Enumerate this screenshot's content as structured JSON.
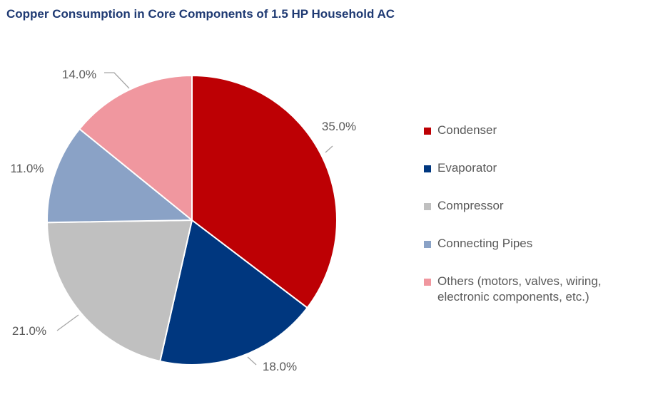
{
  "chart_data": {
    "type": "pie",
    "title": "Copper Consumption in Core Components of 1.5 HP Household AC",
    "legend_position": "right",
    "slices": [
      {
        "name": "Condenser",
        "value": 35.0,
        "label": "35.0%",
        "color": "#bd0004"
      },
      {
        "name": "Evaporator",
        "value": 18.0,
        "label": "18.0%",
        "color": "#00377f"
      },
      {
        "name": "Compressor",
        "value": 21.0,
        "label": "21.0%",
        "color": "#c0c0c0"
      },
      {
        "name": "Connecting Pipes",
        "value": 11.0,
        "label": "11.0%",
        "color": "#8aa2c6"
      },
      {
        "name": "Others (motors, valves, wiring, electronic components, etc.)",
        "value": 14.0,
        "label": "14.0%",
        "color": "#f0979f"
      }
    ]
  }
}
